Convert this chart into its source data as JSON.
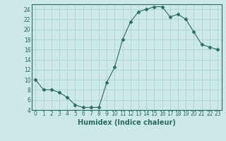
{
  "x": [
    0,
    1,
    2,
    3,
    4,
    5,
    6,
    7,
    8,
    9,
    10,
    11,
    12,
    13,
    14,
    15,
    16,
    17,
    18,
    19,
    20,
    21,
    22,
    23
  ],
  "y": [
    10,
    8,
    8,
    7.5,
    6.5,
    5,
    4.5,
    4.5,
    4.5,
    9.5,
    12.5,
    18,
    21.5,
    23.5,
    24,
    24.5,
    24.5,
    22.5,
    23,
    22,
    19.5,
    17,
    16.5,
    16
  ],
  "line_color": "#2d6b5e",
  "marker": "D",
  "marker_size": 2.5,
  "bg_color": "#cce8e8",
  "grid_color": "#aacece",
  "xlabel": "Humidex (Indice chaleur)",
  "ylim": [
    4,
    25
  ],
  "xlim": [
    -0.5,
    23.5
  ],
  "yticks": [
    4,
    6,
    8,
    10,
    12,
    14,
    16,
    18,
    20,
    22,
    24
  ],
  "xticks": [
    0,
    1,
    2,
    3,
    4,
    5,
    6,
    7,
    8,
    9,
    10,
    11,
    12,
    13,
    14,
    15,
    16,
    17,
    18,
    19,
    20,
    21,
    22,
    23
  ],
  "tick_label_fontsize": 5.5,
  "xlabel_fontsize": 7
}
